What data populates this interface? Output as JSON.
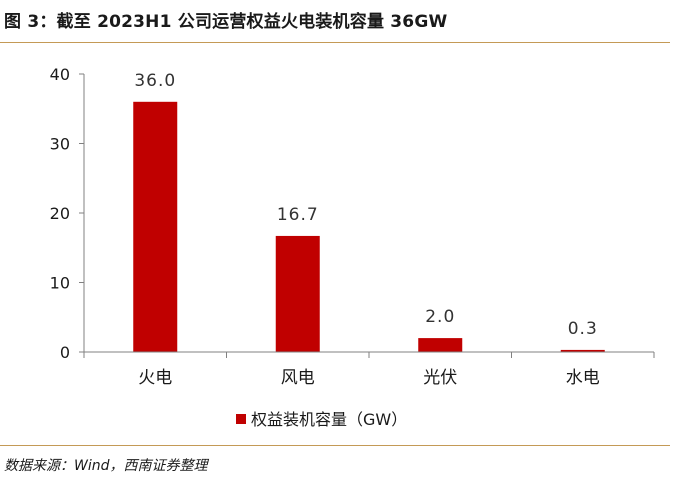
{
  "figure": {
    "title": "图 3：截至 2023H1 公司运营权益火电装机容量 36GW",
    "source": "数据来源：Wind，西南证券整理"
  },
  "chart_data": {
    "type": "bar",
    "categories": [
      "火电",
      "风电",
      "光伏",
      "水电"
    ],
    "series": [
      {
        "name": "权益装机容量（GW）",
        "values": [
          36.0,
          16.7,
          2.0,
          0.3
        ]
      }
    ],
    "data_labels": [
      "36.0",
      "16.7",
      "2.0",
      "0.3"
    ],
    "ylim": [
      0,
      40
    ],
    "yticks": [
      0,
      10,
      20,
      30,
      40
    ],
    "grid": false,
    "legend": "bottom",
    "color": "#c00000"
  }
}
